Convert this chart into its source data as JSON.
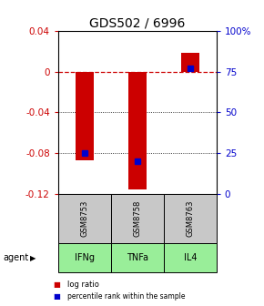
{
  "title": "GDS502 / 6996",
  "samples": [
    "GSM8753",
    "GSM8758",
    "GSM8763"
  ],
  "agents": [
    "IFNg",
    "TNFa",
    "IL4"
  ],
  "log_ratios": [
    -0.087,
    -0.115,
    0.018
  ],
  "percentile_ranks": [
    25,
    20,
    77
  ],
  "ylim_left": [
    -0.12,
    0.04
  ],
  "ylim_right": [
    0,
    100
  ],
  "yticks_left": [
    -0.12,
    -0.08,
    -0.04,
    0.0,
    0.04
  ],
  "yticks_right": [
    0,
    25,
    50,
    75,
    100
  ],
  "ytick_labels_left": [
    "-0.12",
    "-0.08",
    "-0.04",
    "0",
    "0.04"
  ],
  "ytick_labels_right": [
    "0",
    "25",
    "50",
    "75",
    "100%"
  ],
  "bar_color": "#cc0000",
  "percentile_color": "#0000cc",
  "sample_bg_color": "#c8c8c8",
  "agent_bg_color": "#99ee99",
  "zero_line_color": "#cc0000",
  "grid_color": "#000000",
  "title_fontsize": 10,
  "axis_fontsize": 7.5,
  "bar_width": 0.35,
  "legend_bar_color": "#cc0000",
  "legend_pct_color": "#0000cc"
}
